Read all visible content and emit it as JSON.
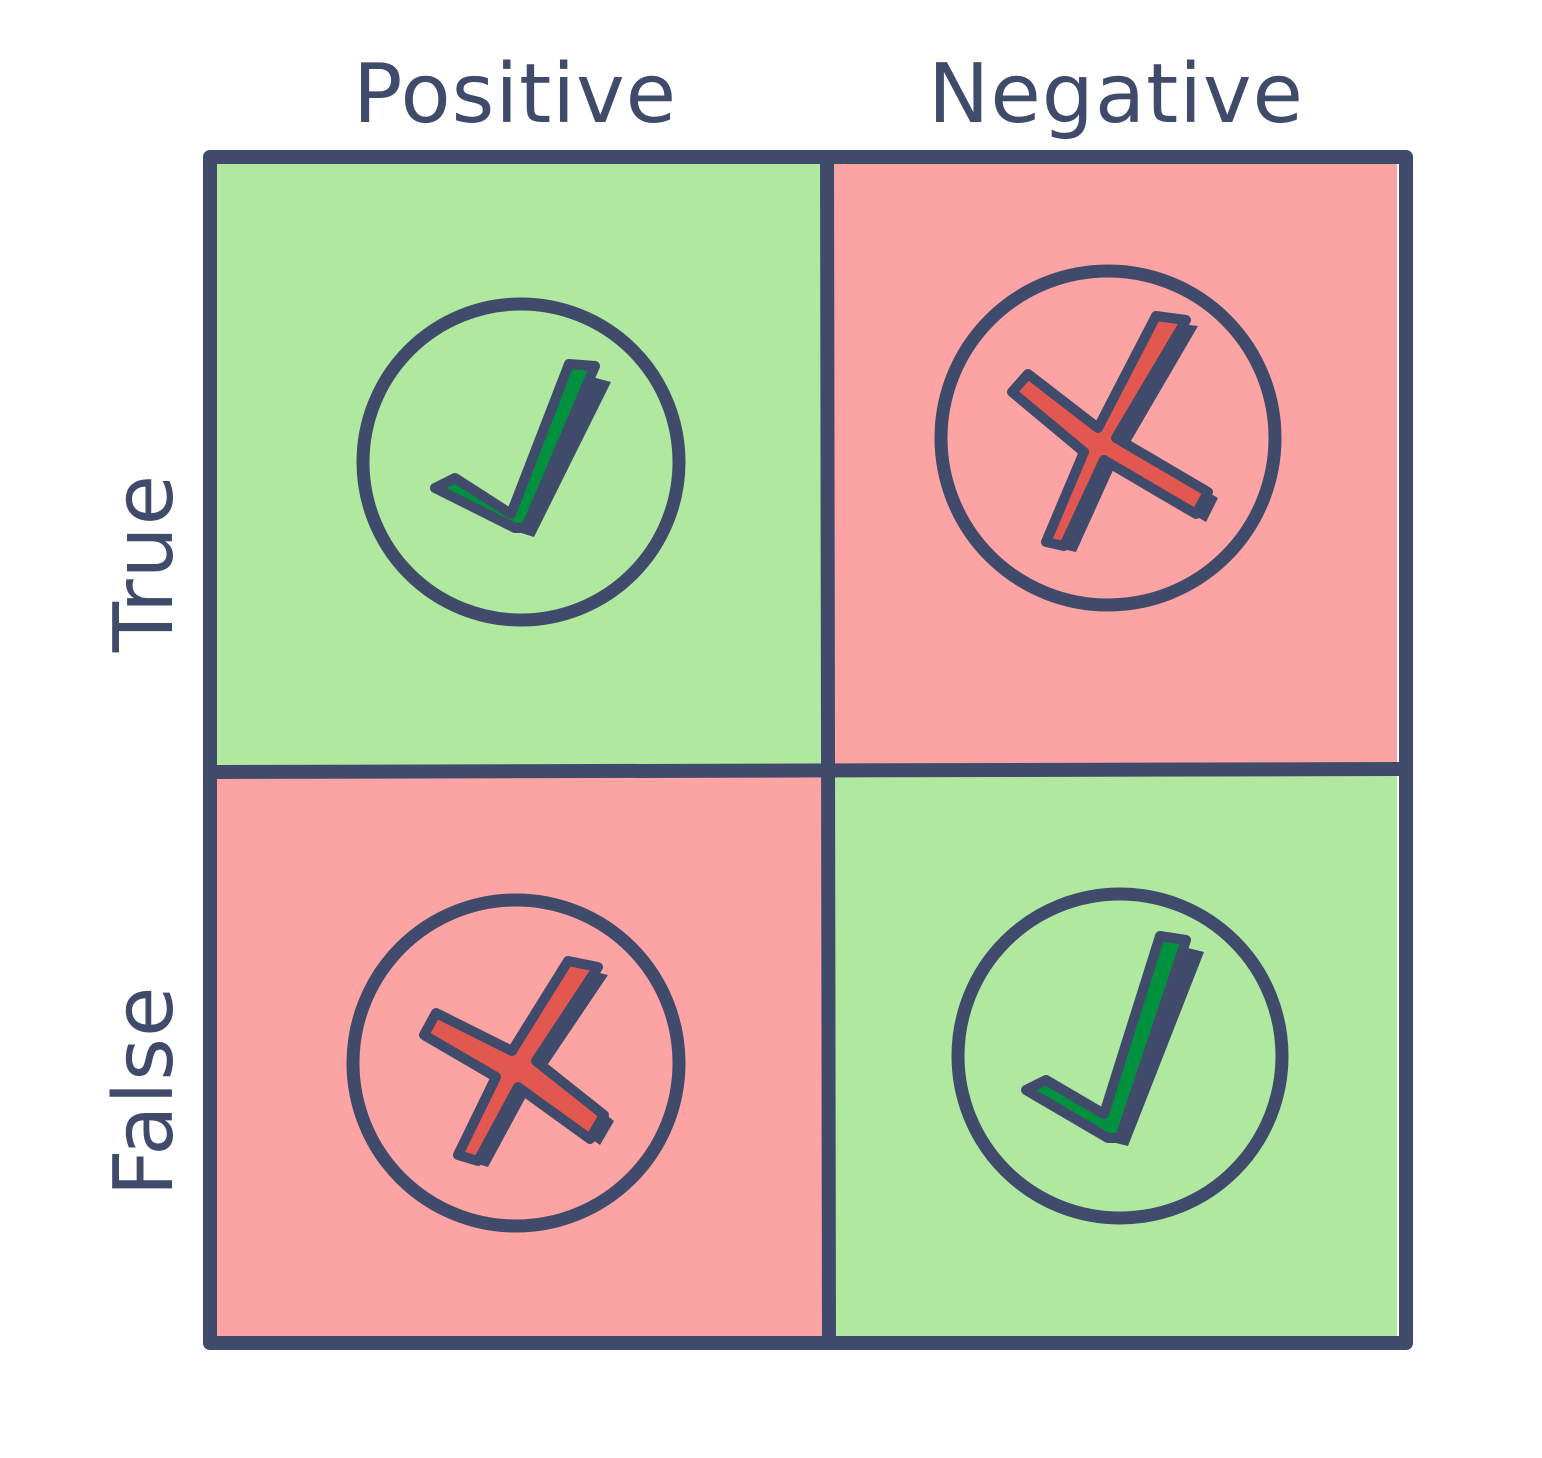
{
  "columns": {
    "positive": "Positive",
    "negative": "Negative"
  },
  "rows": {
    "true": "True",
    "false": "False"
  },
  "cells": [
    {
      "row": "True",
      "column": "Positive",
      "mark": "check-icon",
      "fill": "#b1e8a0"
    },
    {
      "row": "True",
      "column": "Negative",
      "mark": "cross-icon",
      "fill": "#fca3a3"
    },
    {
      "row": "False",
      "column": "Positive",
      "mark": "cross-icon",
      "fill": "#fca3a3"
    },
    {
      "row": "False",
      "column": "Negative",
      "mark": "check-icon",
      "fill": "#b1e8a0"
    }
  ],
  "colors": {
    "outline": "#404b6b",
    "correct_fill": "#b1e8a0",
    "incorrect_fill": "#fca3a3",
    "check": "#00913f",
    "cross": "#e2574f"
  }
}
